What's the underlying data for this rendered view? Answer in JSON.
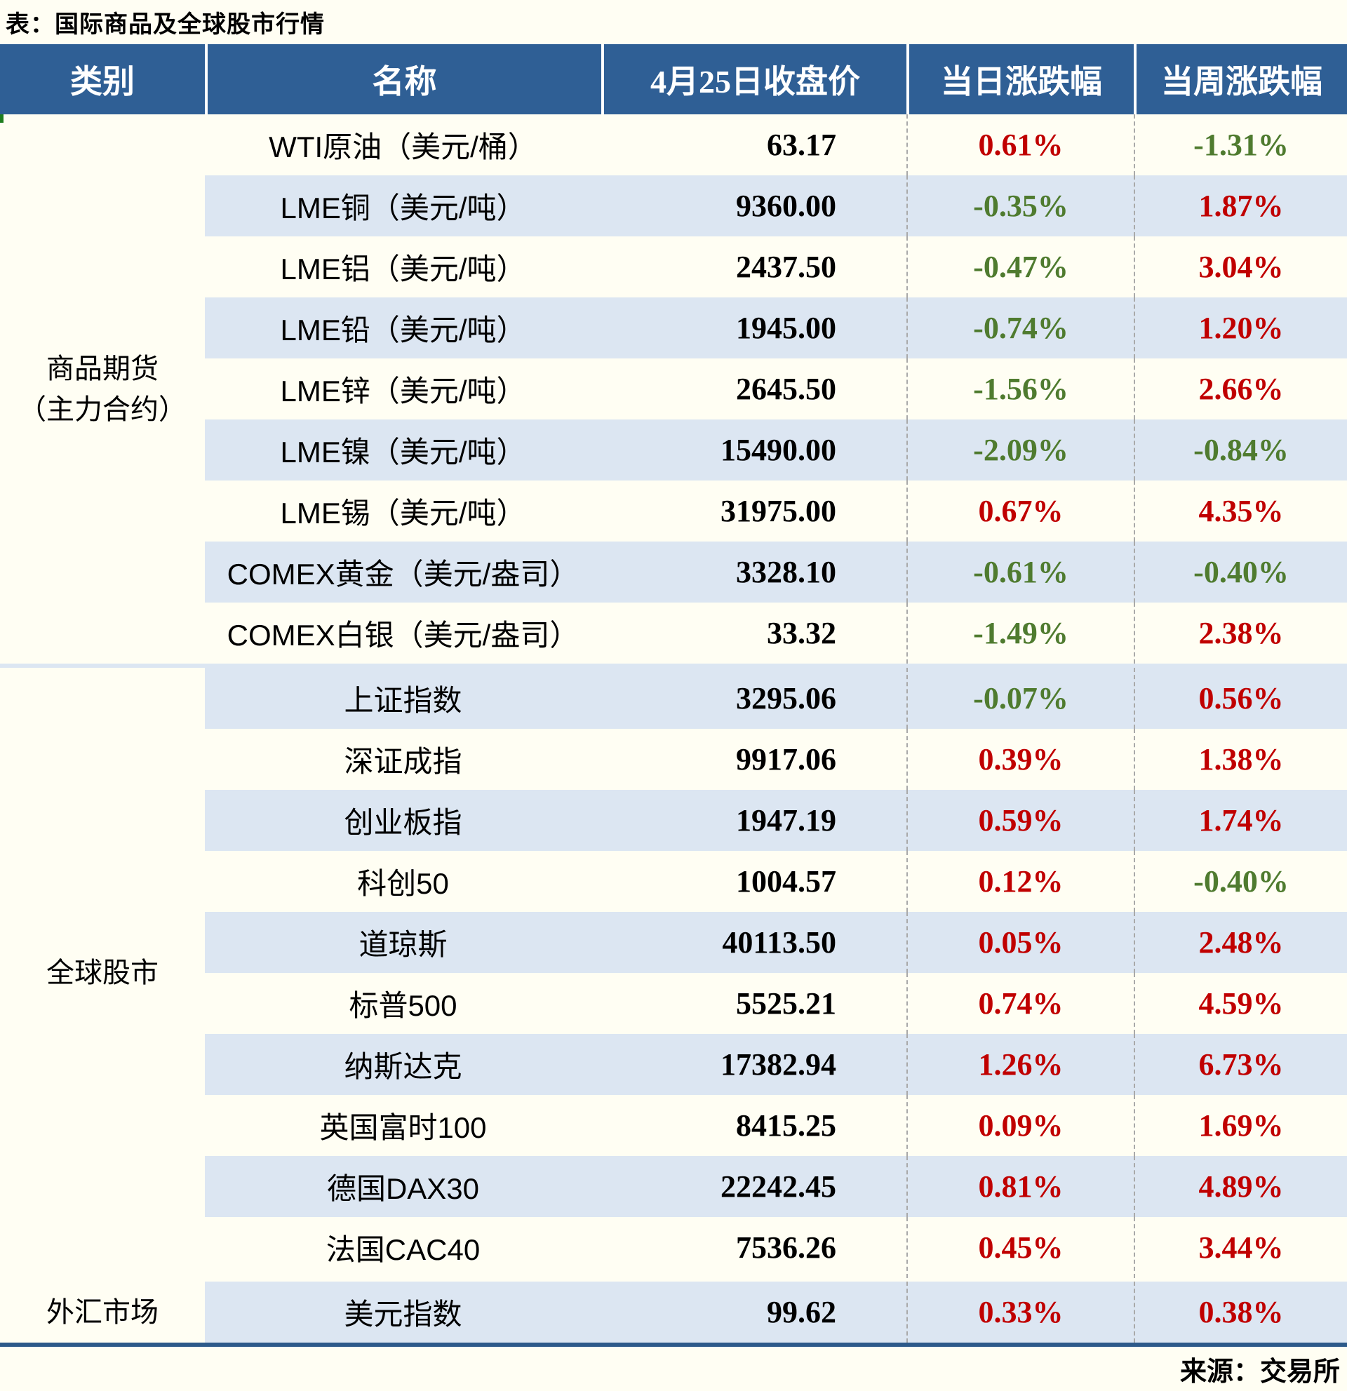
{
  "title": "表：国际商品及全球股市行情",
  "source": "来源：交易所",
  "colors": {
    "header_bg": "#2F5F95",
    "row_alt_blue": "#DCE6F2",
    "page_ivory": "#FFFEF3",
    "up_red": "#C00000",
    "down_green": "#4F7B2F",
    "bottom_rule_blue": "#2D5A8A"
  },
  "table": {
    "headers": [
      "类别",
      "名称",
      "4月25日收盘价",
      "当日涨跌幅",
      "当周涨跌幅"
    ],
    "sections": [
      {
        "category": "商品期货\n（主力合约）",
        "rows": [
          {
            "name": "WTI原油（美元/桶）",
            "close": "63.17",
            "daily": "0.61%",
            "weekly": "-1.31%"
          },
          {
            "name": "LME铜（美元/吨）",
            "close": "9360.00",
            "daily": "-0.35%",
            "weekly": "1.87%"
          },
          {
            "name": "LME铝（美元/吨）",
            "close": "2437.50",
            "daily": "-0.47%",
            "weekly": "3.04%"
          },
          {
            "name": "LME铅（美元/吨）",
            "close": "1945.00",
            "daily": "-0.74%",
            "weekly": "1.20%"
          },
          {
            "name": "LME锌（美元/吨）",
            "close": "2645.50",
            "daily": "-1.56%",
            "weekly": "2.66%"
          },
          {
            "name": "LME镍（美元/吨）",
            "close": "15490.00",
            "daily": "-2.09%",
            "weekly": "-0.84%"
          },
          {
            "name": "LME锡（美元/吨）",
            "close": "31975.00",
            "daily": "0.67%",
            "weekly": "4.35%"
          },
          {
            "name": "COMEX黄金（美元/盎司）",
            "close": "3328.10",
            "daily": "-0.61%",
            "weekly": "-0.40%"
          },
          {
            "name": "COMEX白银（美元/盎司）",
            "close": "33.32",
            "daily": "-1.49%",
            "weekly": "2.38%"
          }
        ]
      },
      {
        "category": "全球股市",
        "rows": [
          {
            "name": "上证指数",
            "close": "3295.06",
            "daily": "-0.07%",
            "weekly": "0.56%"
          },
          {
            "name": "深证成指",
            "close": "9917.06",
            "daily": "0.39%",
            "weekly": "1.38%"
          },
          {
            "name": "创业板指",
            "close": "1947.19",
            "daily": "0.59%",
            "weekly": "1.74%"
          },
          {
            "name": "科创50",
            "close": "1004.57",
            "daily": "0.12%",
            "weekly": "-0.40%"
          },
          {
            "name": "道琼斯",
            "close": "40113.50",
            "daily": "0.05%",
            "weekly": "2.48%"
          },
          {
            "name": "标普500",
            "close": "5525.21",
            "daily": "0.74%",
            "weekly": "4.59%"
          },
          {
            "name": "纳斯达克",
            "close": "17382.94",
            "daily": "1.26%",
            "weekly": "6.73%"
          },
          {
            "name": "英国富时100",
            "close": "8415.25",
            "daily": "0.09%",
            "weekly": "1.69%"
          },
          {
            "name": "德国DAX30",
            "close": "22242.45",
            "daily": "0.81%",
            "weekly": "4.89%"
          },
          {
            "name": "法国CAC40",
            "close": "7536.26",
            "daily": "0.45%",
            "weekly": "3.44%"
          }
        ]
      },
      {
        "category": "外汇市场",
        "rows": [
          {
            "name": "美元指数",
            "close": "99.62",
            "daily": "0.33%",
            "weekly": "0.38%"
          }
        ]
      }
    ]
  }
}
